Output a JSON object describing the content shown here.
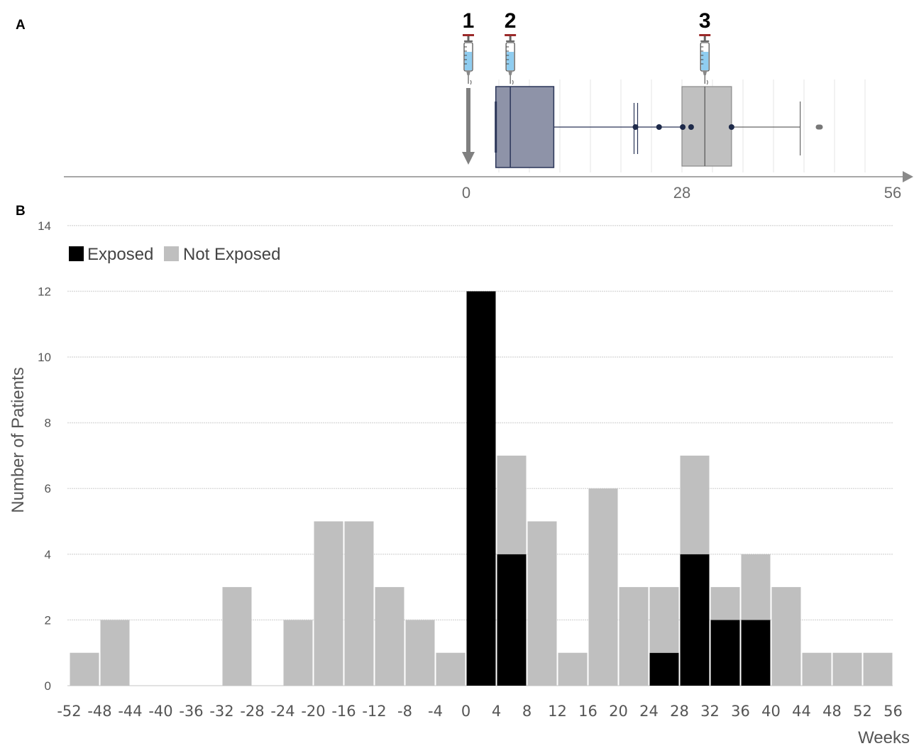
{
  "panel_labels": {
    "a": "A",
    "b": "B"
  },
  "doses": [
    {
      "label": "1",
      "week": 0
    },
    {
      "label": "2",
      "week": 5.5
    },
    {
      "label": "3",
      "week": 31
    }
  ],
  "colors": {
    "exposed": "#000000",
    "not_exposed": "#bfbfbf",
    "box1_fill": "#8e93a8",
    "box1_stroke": "#2a3558",
    "box2_fill": "#c0c0c0",
    "box2_stroke": "#8a8a8a",
    "whisker": "#2a3558",
    "outlier": "#1e2a4a",
    "gridline": "#e6e6e6",
    "syringe_cap": "#9b2a2a",
    "syringe_liquid": "#8fcdf0"
  },
  "chart_data": [
    {
      "type": "boxplot",
      "panel": "A",
      "x_ticks": [
        "0",
        "28",
        "56"
      ],
      "xlim": [
        0,
        56
      ],
      "boxes": [
        {
          "name": "interval-1",
          "whisker_low": 3.6,
          "q1": 3.6,
          "median": 5.5,
          "q3": 11.2,
          "whisker_high": 22,
          "outliers": []
        },
        {
          "name": "interval-2",
          "whisker_low": 22,
          "q1": 28,
          "median": 31,
          "q3": 34.5,
          "whisker_high": 43.5,
          "outliers": [
            25,
            28.1,
            29.2,
            34.5,
            46
          ]
        }
      ]
    },
    {
      "type": "bar",
      "panel": "B",
      "stacked": true,
      "xlabel": "Weeks",
      "ylabel": "Number of Patients",
      "ylim": [
        0,
        14
      ],
      "y_ticks": [
        "0",
        "2",
        "4",
        "6",
        "8",
        "10",
        "12",
        "14"
      ],
      "x_ticks": [
        "-52",
        "-48",
        "-44",
        "-40",
        "-36",
        "-32",
        "-28",
        "-24",
        "-20",
        "-16",
        "-12",
        "-8",
        "-4",
        "0",
        "4",
        "8",
        "12",
        "16",
        "20",
        "24",
        "28",
        "32",
        "36",
        "40",
        "44",
        "48",
        "52",
        "56"
      ],
      "bins_start": [
        -52,
        -48,
        -44,
        -40,
        -36,
        -32,
        -28,
        -24,
        -20,
        -16,
        -12,
        -8,
        -4,
        0,
        4,
        8,
        12,
        16,
        20,
        24,
        28,
        32,
        36,
        40,
        44,
        48,
        52
      ],
      "legend_position": "top-left",
      "series": [
        {
          "name": "Exposed",
          "values": [
            0,
            0,
            0,
            0,
            0,
            0,
            0,
            0,
            0,
            0,
            0,
            0,
            0,
            12,
            4,
            0,
            0,
            0,
            0,
            1,
            4,
            2,
            2,
            0,
            0,
            0,
            0
          ]
        },
        {
          "name": "Not Exposed",
          "values": [
            1,
            2,
            0,
            0,
            0,
            3,
            0,
            2,
            5,
            5,
            3,
            2,
            1,
            0,
            3,
            5,
            1,
            6,
            3,
            2,
            3,
            1,
            2,
            3,
            1,
            1,
            1
          ]
        }
      ]
    }
  ]
}
